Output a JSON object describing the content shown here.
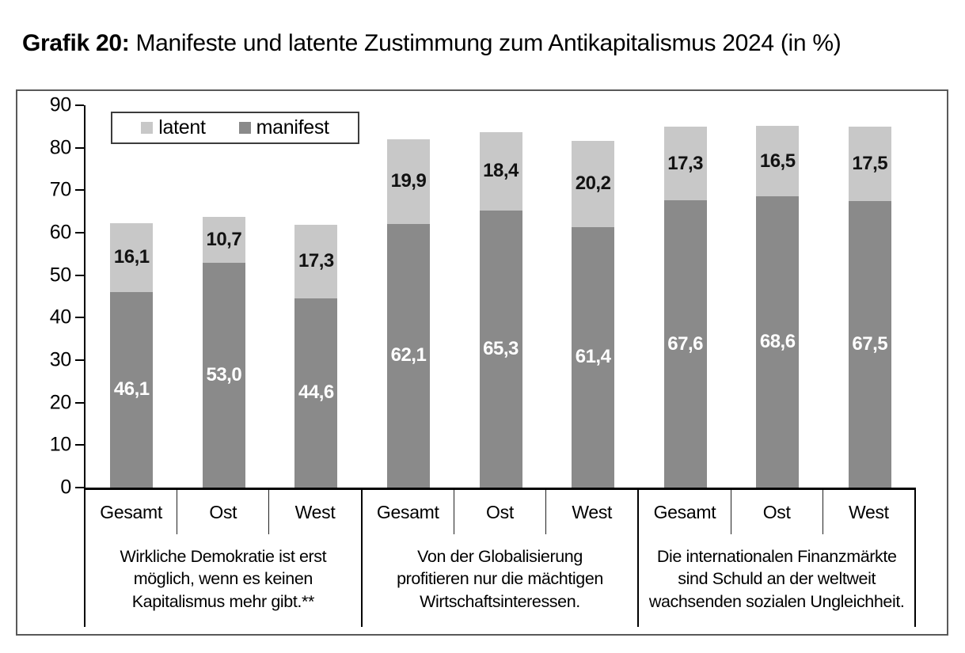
{
  "title": {
    "prefix": "Grafik 20:",
    "rest": "Manifeste und latente Zustimmung zum Antikapitalismus 2024 (in %)"
  },
  "colors": {
    "manifest": "#8a8a8a",
    "latent": "#c8c8c8",
    "axis": "#000000",
    "frame": "#595959"
  },
  "legend": {
    "items": [
      {
        "label": "latent"
      },
      {
        "label": "manifest"
      }
    ]
  },
  "y_axis": {
    "min": 0,
    "max": 90,
    "ticks": [
      "90",
      "80",
      "70",
      "60",
      "50",
      "40",
      "30",
      "20",
      "10",
      "0"
    ]
  },
  "groups": [
    {
      "statement": "Wirkliche Demokratie ist erst\nmöglich, wenn es keinen\nKapitalismus mehr gibt.**",
      "bars": [
        {
          "category": "Gesamt",
          "manifest": 46.1,
          "latent": 16.1,
          "manifest_label": "46,1",
          "latent_label": "16,1"
        },
        {
          "category": "Ost",
          "manifest": 53.0,
          "latent": 10.7,
          "manifest_label": "53,0",
          "latent_label": "10,7"
        },
        {
          "category": "West",
          "manifest": 44.6,
          "latent": 17.3,
          "manifest_label": "44,6",
          "latent_label": "17,3"
        }
      ]
    },
    {
      "statement": "Von der Globalisierung\nprofitieren nur die mächtigen\nWirtschaftsinteressen.",
      "bars": [
        {
          "category": "Gesamt",
          "manifest": 62.1,
          "latent": 19.9,
          "manifest_label": "62,1",
          "latent_label": "19,9"
        },
        {
          "category": "Ost",
          "manifest": 65.3,
          "latent": 18.4,
          "manifest_label": "65,3",
          "latent_label": "18,4"
        },
        {
          "category": "West",
          "manifest": 61.4,
          "latent": 20.2,
          "manifest_label": "61,4",
          "latent_label": "20,2"
        }
      ]
    },
    {
      "statement": "Die internationalen Finanzmärkte\nsind Schuld an der weltweit\nwachsenden sozialen Ungleichheit.",
      "bars": [
        {
          "category": "Gesamt",
          "manifest": 67.6,
          "latent": 17.3,
          "manifest_label": "67,6",
          "latent_label": "17,3"
        },
        {
          "category": "Ost",
          "manifest": 68.6,
          "latent": 16.5,
          "manifest_label": "68,6",
          "latent_label": "16,5"
        },
        {
          "category": "West",
          "manifest": 67.5,
          "latent": 17.5,
          "manifest_label": "67,5",
          "latent_label": "17,5"
        }
      ]
    }
  ],
  "chart_data": {
    "type": "bar",
    "stacked": true,
    "title": "Grafik 20: Manifeste und latente Zustimmung zum Antikapitalismus 2024 (in %)",
    "categories": [
      "Gesamt",
      "Ost",
      "West",
      "Gesamt",
      "Ost",
      "West",
      "Gesamt",
      "Ost",
      "West"
    ],
    "group_labels": [
      "Wirkliche Demokratie ist erst möglich, wenn es keinen Kapitalismus mehr gibt.**",
      "Von der Globalisierung profitieren nur die mächtigen Wirtschaftsinteressen.",
      "Die internationalen Finanzmärkte sind Schuld an der weltweit wachsenden sozialen Ungleichheit."
    ],
    "series": [
      {
        "name": "manifest",
        "color": "#8a8a8a",
        "values": [
          46.1,
          53.0,
          44.6,
          62.1,
          65.3,
          61.4,
          67.6,
          68.6,
          67.5
        ]
      },
      {
        "name": "latent",
        "color": "#c8c8c8",
        "values": [
          16.1,
          10.7,
          17.3,
          19.9,
          18.4,
          20.2,
          17.3,
          16.5,
          17.5
        ]
      }
    ],
    "ylim": [
      0,
      90
    ],
    "ytick_step": 10,
    "xlabel": "",
    "ylabel": "",
    "grid": false,
    "legend_position": "top-left",
    "value_labels": "inside-center, comma decimal separator"
  }
}
